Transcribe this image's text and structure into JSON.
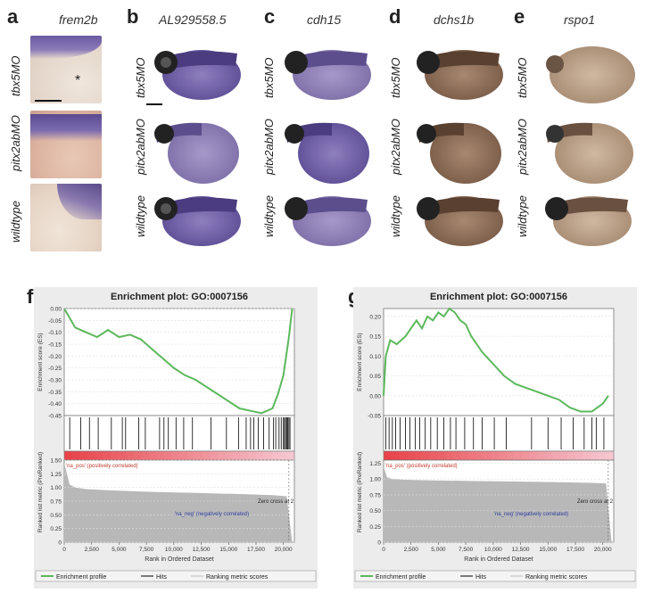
{
  "top_panels": {
    "a": {
      "letter": "a",
      "gene": "frem2b",
      "asterisk": "*"
    },
    "b": {
      "letter": "b",
      "gene": "AL929558.5"
    },
    "c": {
      "letter": "c",
      "gene": "cdh15"
    },
    "d": {
      "letter": "d",
      "gene": "dchs1b"
    },
    "e": {
      "letter": "e",
      "gene": "rspo1"
    },
    "row_labels": [
      "tbx5MO",
      "pitx2abMO",
      "wildtype"
    ]
  },
  "colors": {
    "stain_purple": "#6a4c9c",
    "stain_brown": "#7a5a40",
    "es_line": "#5cb85c",
    "pos_bar": "#e8444a",
    "neg_bar": "#f5c6d0",
    "metric_fill": "#b8b8b8"
  },
  "chart_data": [
    {
      "type": "line",
      "panel_letter": "f",
      "title": "Enrichment plot: GO:0007156",
      "ylabel": "Enrichment score (ES)",
      "ylim": [
        -0.45,
        0.0
      ],
      "yticks": [
        "0.00",
        "-0.05",
        "-0.10",
        "-0.15",
        "-0.20",
        "-0.25",
        "-0.30",
        "-0.35",
        "-0.40",
        "-0.45"
      ],
      "series": [
        {
          "name": "Enrichment profile",
          "x": [
            0,
            1000,
            2000,
            3000,
            4000,
            5000,
            6000,
            7000,
            8000,
            9000,
            10000,
            11000,
            12000,
            13000,
            14000,
            15000,
            16000,
            17000,
            18000,
            19000,
            19500,
            20000,
            20500,
            20800
          ],
          "y": [
            0.0,
            -0.08,
            -0.1,
            -0.12,
            -0.09,
            -0.12,
            -0.11,
            -0.13,
            -0.17,
            -0.21,
            -0.25,
            -0.28,
            -0.3,
            -0.33,
            -0.36,
            -0.39,
            -0.42,
            -0.43,
            -0.44,
            -0.42,
            -0.36,
            -0.28,
            -0.12,
            0.0
          ]
        }
      ],
      "hits_x": [
        500,
        1500,
        2300,
        3100,
        4300,
        5300,
        5600,
        6800,
        7400,
        8700,
        9100,
        9500,
        10200,
        10900,
        11700,
        13400,
        14800,
        15900,
        16600,
        17000,
        17300,
        17700,
        18200,
        18700,
        19100,
        19300,
        19600,
        19800,
        20000,
        20100,
        20200,
        20300,
        20400,
        20500,
        20600
      ],
      "ranking_ylabel": "Ranked list metric (PreRanked)",
      "ranking_yticks": [
        "1.50",
        "1.25",
        "1.00",
        "0.75",
        "0.50",
        "0.25",
        "0"
      ],
      "ranking_ylim": [
        0,
        1.5
      ],
      "ranking_x": [
        0,
        500,
        1000,
        2000,
        4000,
        8000,
        12000,
        16000,
        19000,
        20300,
        20800
      ],
      "ranking_y": [
        1.45,
        1.05,
        1.0,
        0.97,
        0.95,
        0.92,
        0.9,
        0.88,
        0.86,
        0.84,
        0.0
      ],
      "xlabel": "Rank in Ordered Dataset",
      "xlim": [
        0,
        21000
      ],
      "xticks": [
        "0",
        "2,500",
        "5,000",
        "7,500",
        "10,000",
        "12,500",
        "15,000",
        "17,500",
        "20,000"
      ],
      "pos_label": "'na_pos' (positively correlated)",
      "neg_label": "'na_neg' (negatively correlated)",
      "zero_cross": "Zero cross at 2",
      "legend": [
        "Enrichment profile",
        "Hits",
        "Ranking metric scores"
      ]
    },
    {
      "type": "line",
      "panel_letter": "g",
      "title": "Enrichment plot: GO:0007156",
      "ylabel": "Enrichment score (ES)",
      "ylim": [
        -0.05,
        0.22
      ],
      "yticks": [
        "0.20",
        "0.15",
        "0.10",
        "0.05",
        "0.00",
        "-0.05"
      ],
      "series": [
        {
          "name": "Enrichment profile",
          "x": [
            0,
            200,
            600,
            1200,
            2000,
            2500,
            3000,
            3500,
            4000,
            4500,
            5000,
            5500,
            6000,
            6500,
            7000,
            7500,
            8000,
            9000,
            10000,
            11000,
            12000,
            13000,
            14000,
            15000,
            16000,
            17000,
            18000,
            19000,
            19500,
            20000,
            20500
          ],
          "y": [
            0.0,
            0.1,
            0.14,
            0.13,
            0.15,
            0.17,
            0.19,
            0.17,
            0.2,
            0.19,
            0.21,
            0.2,
            0.22,
            0.21,
            0.19,
            0.18,
            0.15,
            0.11,
            0.08,
            0.05,
            0.03,
            0.02,
            0.01,
            0.0,
            -0.01,
            -0.03,
            -0.04,
            -0.04,
            -0.03,
            -0.02,
            0.0
          ]
        }
      ],
      "hits_x": [
        200,
        500,
        800,
        1100,
        1500,
        2000,
        2400,
        2900,
        3300,
        3800,
        4300,
        4900,
        5500,
        6100,
        6600,
        7400,
        8200,
        9000,
        10100,
        11200,
        13500,
        15000,
        16200,
        17300,
        18300,
        19000,
        19400,
        20100
      ],
      "ranking_ylabel": "Ranked list metric (PreRanked)",
      "ranking_yticks": [
        "1.25",
        "1.00",
        "0.75",
        "0.50",
        "0.25",
        "0"
      ],
      "ranking_ylim": [
        0,
        1.3
      ],
      "ranking_x": [
        0,
        300,
        800,
        2000,
        4000,
        8000,
        12000,
        16000,
        19000,
        20300,
        20800
      ],
      "ranking_y": [
        1.2,
        1.03,
        1.0,
        0.99,
        0.98,
        0.97,
        0.96,
        0.95,
        0.94,
        0.93,
        0.0
      ],
      "xlabel": "Rank in Ordered Dataset",
      "xlim": [
        0,
        21000
      ],
      "xticks": [
        "0",
        "2,500",
        "5,000",
        "7,500",
        "10,000",
        "12,500",
        "15,000",
        "17,500",
        "20,000"
      ],
      "pos_label": "'na_pos' (positively correlated)",
      "neg_label": "'na_neg' (negatively correlated)",
      "zero_cross": "Zero cross at 2",
      "legend": [
        "Enrichment profile",
        "Hits",
        "Ranking metric scores"
      ]
    }
  ]
}
